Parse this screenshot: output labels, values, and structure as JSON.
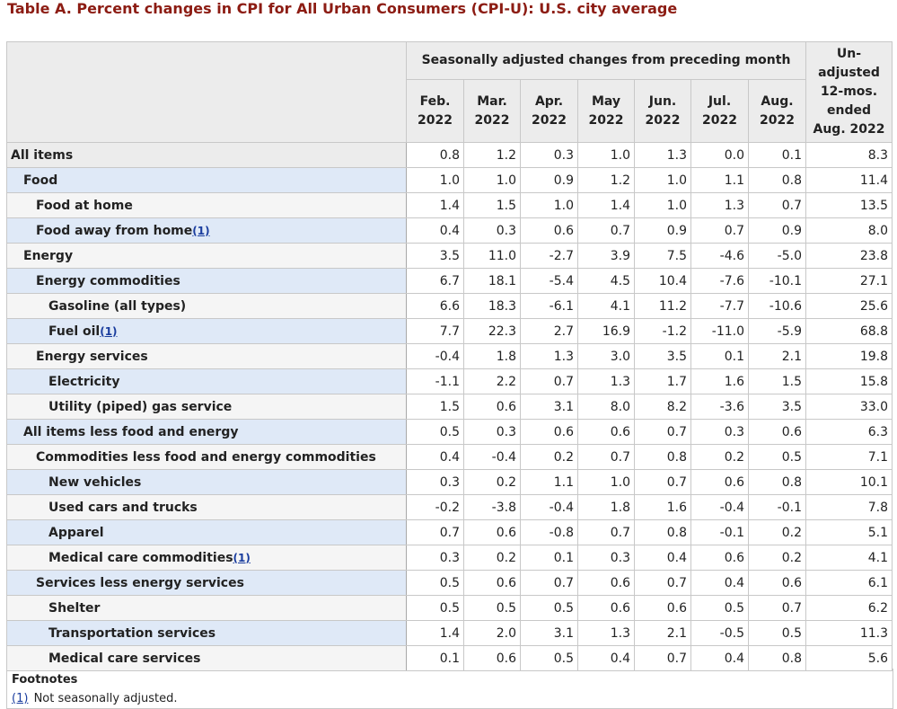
{
  "title": "Table A. Percent changes in CPI for All Urban Consumers (CPI-U): U.S. city average",
  "header": {
    "group_label": "Seasonally adjusted changes from preceding month",
    "months": [
      {
        "line1": "Feb.",
        "line2": "2022"
      },
      {
        "line1": "Mar.",
        "line2": "2022"
      },
      {
        "line1": "Apr.",
        "line2": "2022"
      },
      {
        "line1": "May",
        "line2": "2022"
      },
      {
        "line1": "Jun.",
        "line2": "2022"
      },
      {
        "line1": "Jul.",
        "line2": "2022"
      },
      {
        "line1": "Aug.",
        "line2": "2022"
      }
    ],
    "unadj_lines": [
      "Un-",
      "adjusted",
      "12-mos.",
      "ended",
      "Aug. 2022"
    ]
  },
  "rows": [
    {
      "label": "All items",
      "note": "",
      "level": 0,
      "values": [
        "0.8",
        "1.2",
        "0.3",
        "1.0",
        "1.3",
        "0.0",
        "0.1",
        "8.3"
      ]
    },
    {
      "label": "Food",
      "note": "",
      "level": 1,
      "values": [
        "1.0",
        "1.0",
        "0.9",
        "1.2",
        "1.0",
        "1.1",
        "0.8",
        "11.4"
      ]
    },
    {
      "label": "Food at home",
      "note": "",
      "level": 2,
      "values": [
        "1.4",
        "1.5",
        "1.0",
        "1.4",
        "1.0",
        "1.3",
        "0.7",
        "13.5"
      ]
    },
    {
      "label": "Food away from home",
      "note": "(1)",
      "level": 2,
      "values": [
        "0.4",
        "0.3",
        "0.6",
        "0.7",
        "0.9",
        "0.7",
        "0.9",
        "8.0"
      ]
    },
    {
      "label": "Energy",
      "note": "",
      "level": 1,
      "values": [
        "3.5",
        "11.0",
        "-2.7",
        "3.9",
        "7.5",
        "-4.6",
        "-5.0",
        "23.8"
      ]
    },
    {
      "label": "Energy commodities",
      "note": "",
      "level": 2,
      "values": [
        "6.7",
        "18.1",
        "-5.4",
        "4.5",
        "10.4",
        "-7.6",
        "-10.1",
        "27.1"
      ]
    },
    {
      "label": "Gasoline (all types)",
      "note": "",
      "level": 3,
      "values": [
        "6.6",
        "18.3",
        "-6.1",
        "4.1",
        "11.2",
        "-7.7",
        "-10.6",
        "25.6"
      ]
    },
    {
      "label": "Fuel oil",
      "note": "(1)",
      "level": 3,
      "values": [
        "7.7",
        "22.3",
        "2.7",
        "16.9",
        "-1.2",
        "-11.0",
        "-5.9",
        "68.8"
      ]
    },
    {
      "label": "Energy services",
      "note": "",
      "level": 2,
      "values": [
        "-0.4",
        "1.8",
        "1.3",
        "3.0",
        "3.5",
        "0.1",
        "2.1",
        "19.8"
      ]
    },
    {
      "label": "Electricity",
      "note": "",
      "level": 3,
      "values": [
        "-1.1",
        "2.2",
        "0.7",
        "1.3",
        "1.7",
        "1.6",
        "1.5",
        "15.8"
      ]
    },
    {
      "label": "Utility (piped) gas service",
      "note": "",
      "level": 3,
      "values": [
        "1.5",
        "0.6",
        "3.1",
        "8.0",
        "8.2",
        "-3.6",
        "3.5",
        "33.0"
      ]
    },
    {
      "label": "All items less food and energy",
      "note": "",
      "level": 1,
      "values": [
        "0.5",
        "0.3",
        "0.6",
        "0.6",
        "0.7",
        "0.3",
        "0.6",
        "6.3"
      ]
    },
    {
      "label": "Commodities less food and energy commodities",
      "note": "",
      "level": 2,
      "values": [
        "0.4",
        "-0.4",
        "0.2",
        "0.7",
        "0.8",
        "0.2",
        "0.5",
        "7.1"
      ]
    },
    {
      "label": "New vehicles",
      "note": "",
      "level": 3,
      "values": [
        "0.3",
        "0.2",
        "1.1",
        "1.0",
        "0.7",
        "0.6",
        "0.8",
        "10.1"
      ]
    },
    {
      "label": "Used cars and trucks",
      "note": "",
      "level": 3,
      "values": [
        "-0.2",
        "-3.8",
        "-0.4",
        "1.8",
        "1.6",
        "-0.4",
        "-0.1",
        "7.8"
      ]
    },
    {
      "label": "Apparel",
      "note": "",
      "level": 3,
      "values": [
        "0.7",
        "0.6",
        "-0.8",
        "0.7",
        "0.8",
        "-0.1",
        "0.2",
        "5.1"
      ]
    },
    {
      "label": "Medical care commodities",
      "note": "(1)",
      "level": 3,
      "values": [
        "0.3",
        "0.2",
        "0.1",
        "0.3",
        "0.4",
        "0.6",
        "0.2",
        "4.1"
      ]
    },
    {
      "label": "Services less energy services",
      "note": "",
      "level": 2,
      "values": [
        "0.5",
        "0.6",
        "0.7",
        "0.6",
        "0.7",
        "0.4",
        "0.6",
        "6.1"
      ]
    },
    {
      "label": "Shelter",
      "note": "",
      "level": 3,
      "values": [
        "0.5",
        "0.5",
        "0.5",
        "0.6",
        "0.6",
        "0.5",
        "0.7",
        "6.2"
      ]
    },
    {
      "label": "Transportation services",
      "note": "",
      "level": 3,
      "values": [
        "1.4",
        "2.0",
        "3.1",
        "1.3",
        "2.1",
        "-0.5",
        "0.5",
        "11.3"
      ]
    },
    {
      "label": "Medical care services",
      "note": "",
      "level": 3,
      "values": [
        "0.1",
        "0.6",
        "0.5",
        "0.4",
        "0.7",
        "0.4",
        "0.8",
        "5.6"
      ]
    }
  ],
  "footnotes": {
    "heading": "Footnotes",
    "items": [
      {
        "ref": "(1)",
        "text": "Not seasonally adjusted."
      }
    ]
  }
}
